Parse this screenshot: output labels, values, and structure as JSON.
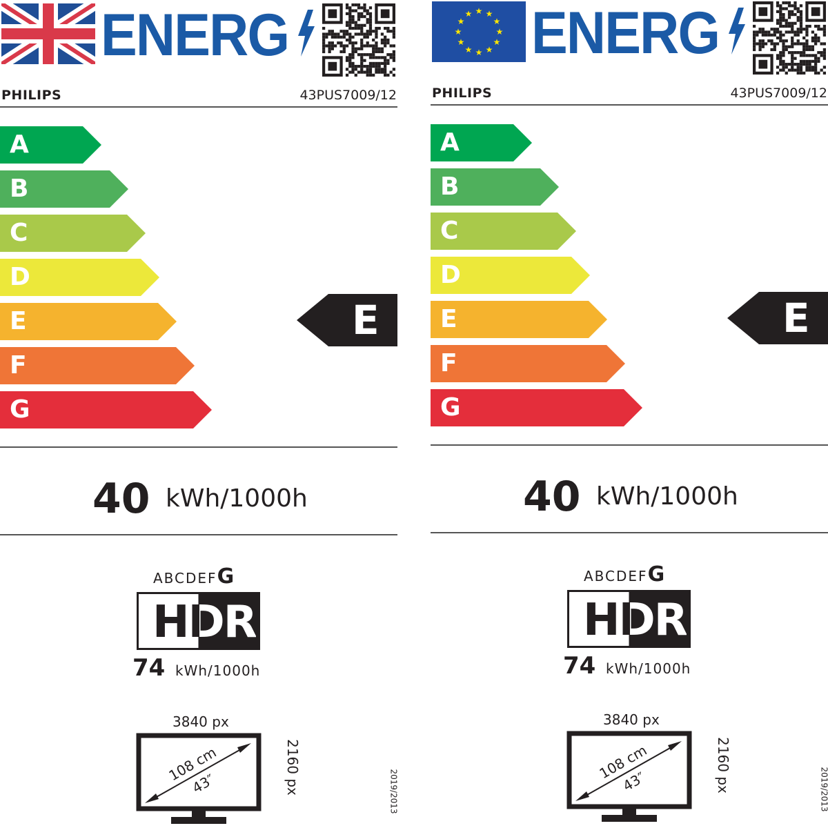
{
  "labels": [
    {
      "flag": "uk-flag",
      "logo_text": "ENERG",
      "brand": "PHILIPS",
      "model": "43PUS7009/12",
      "scale": [
        "A",
        "B",
        "C",
        "D",
        "E",
        "F",
        "G"
      ],
      "energy_class": "E",
      "sdr_value": "40",
      "sdr_unit": "kWh/1000h",
      "hdr_scale": "ABCDEF",
      "hdr_scale_last": "G",
      "hdr_label": "HDR",
      "hdr_value": "74",
      "hdr_unit": "kWh/1000h",
      "res_h": "3840 px",
      "res_v": "2160 px",
      "diag_cm": "108 cm",
      "diag_in": "43″",
      "regulation": "2019/2013"
    },
    {
      "flag": "eu-flag",
      "logo_text": "ENERG",
      "brand": "PHILIPS",
      "model": "43PUS7009/12",
      "scale": [
        "A",
        "B",
        "C",
        "D",
        "E",
        "F",
        "G"
      ],
      "energy_class": "E",
      "sdr_value": "40",
      "sdr_unit": "kWh/1000h",
      "hdr_scale": "ABCDEF",
      "hdr_scale_last": "G",
      "hdr_label": "HDR",
      "hdr_value": "74",
      "hdr_unit": "kWh/1000h",
      "res_h": "3840 px",
      "res_v": "2160 px",
      "diag_cm": "108 cm",
      "diag_in": "43″",
      "regulation": "2019/2013"
    }
  ],
  "colors": {
    "logo": "#1b5aa6",
    "A": "#00a651",
    "B": "#4fb05c",
    "C": "#a9c94a",
    "D": "#ece83a",
    "E": "#f5b32e",
    "F": "#ef7537",
    "G": "#e42e3b",
    "class_arrow": "#231f20"
  }
}
